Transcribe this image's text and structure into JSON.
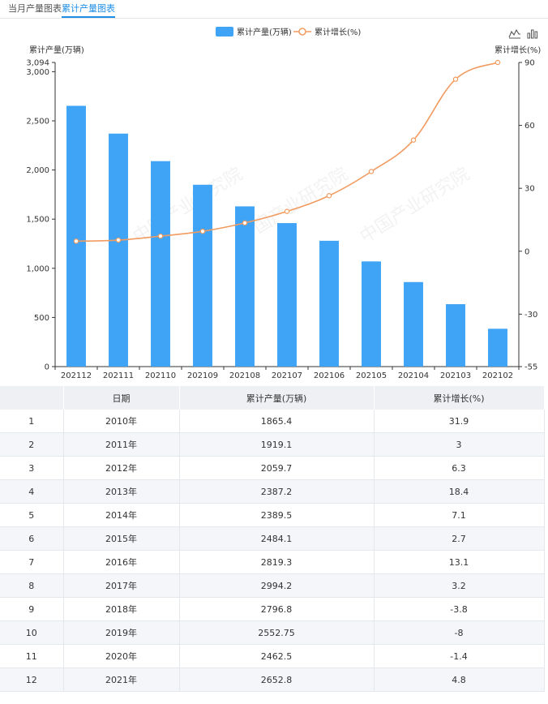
{
  "tabs": [
    {
      "label": "当月产量图表",
      "active": false
    },
    {
      "label": "累计产量图表",
      "active": true
    }
  ],
  "toolbar": [
    {
      "name": "line-chart-icon"
    },
    {
      "name": "bar-chart-icon"
    }
  ],
  "colors": {
    "bar": "#3fa4f5",
    "line": "#f29b60",
    "accent": "#1e8ee6"
  },
  "watermark": {
    "text": "中国产业研究院",
    "sub": "www.chinairr.org"
  },
  "chart_data": {
    "type": "bar",
    "legend_position": "top-center",
    "categories": [
      "202112",
      "202111",
      "202110",
      "202109",
      "202108",
      "202107",
      "202106",
      "202105",
      "202104",
      "202103",
      "202102"
    ],
    "series": [
      {
        "name": "累计产量(万辆)",
        "type": "bar",
        "axis": "left",
        "values": [
          2652.8,
          2370,
          2090,
          1850,
          1630,
          1460,
          1280,
          1070,
          860,
          635,
          385
        ]
      },
      {
        "name": "累计增长(%)",
        "type": "line",
        "axis": "right",
        "values": [
          4.8,
          5.3,
          7.2,
          9.5,
          13.5,
          19.0,
          26.5,
          38.0,
          53.0,
          82.0,
          90.0
        ]
      }
    ],
    "y_left": {
      "label": "累计产量(万辆)",
      "min": 0,
      "max": 3094,
      "ticks": [
        0,
        500,
        1000,
        1500,
        2000,
        2500,
        3000,
        3094
      ],
      "tick_labels": [
        "0",
        "500",
        "1,000",
        "1,500",
        "2,000",
        "2,500",
        "3,000",
        "3,094"
      ]
    },
    "y_right": {
      "label": "累计增长(%)",
      "min": -55,
      "max": 90,
      "ticks": [
        -55,
        -30,
        0,
        30,
        60,
        90
      ],
      "tick_labels": [
        "-55",
        "-30",
        "0",
        "30",
        "60",
        "90"
      ]
    },
    "grid": false
  },
  "table": {
    "headers": [
      "",
      "日期",
      "累计产量(万辆)",
      "累计增长(%)"
    ],
    "rows": [
      [
        "1",
        "2010年",
        "1865.4",
        "31.9"
      ],
      [
        "2",
        "2011年",
        "1919.1",
        "3"
      ],
      [
        "3",
        "2012年",
        "2059.7",
        "6.3"
      ],
      [
        "4",
        "2013年",
        "2387.2",
        "18.4"
      ],
      [
        "5",
        "2014年",
        "2389.5",
        "7.1"
      ],
      [
        "6",
        "2015年",
        "2484.1",
        "2.7"
      ],
      [
        "7",
        "2016年",
        "2819.3",
        "13.1"
      ],
      [
        "8",
        "2017年",
        "2994.2",
        "3.2"
      ],
      [
        "9",
        "2018年",
        "2796.8",
        "-3.8"
      ],
      [
        "10",
        "2019年",
        "2552.75",
        "-8"
      ],
      [
        "11",
        "2020年",
        "2462.5",
        "-1.4"
      ],
      [
        "12",
        "2021年",
        "2652.8",
        "4.8"
      ]
    ]
  }
}
